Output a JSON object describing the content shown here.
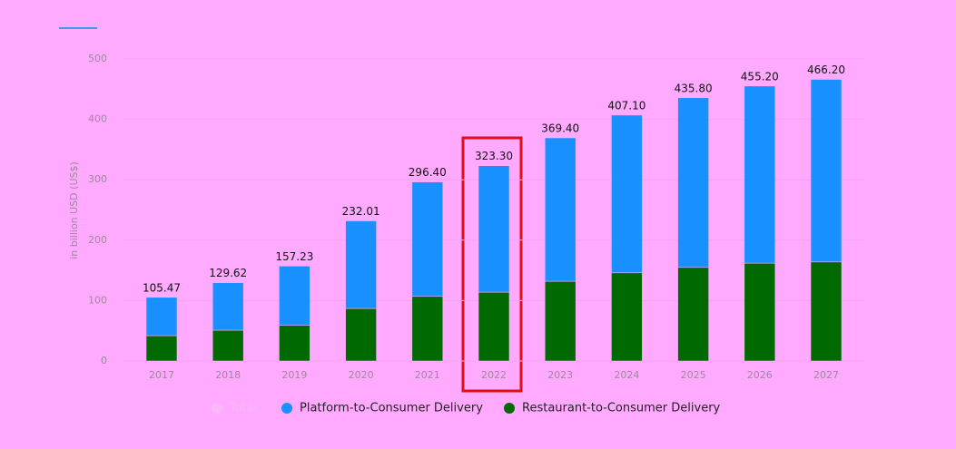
{
  "chart_data": {
    "type": "bar",
    "stacked": true,
    "y_label": "in billion USD (US$)",
    "categories": [
      "2017",
      "2018",
      "2019",
      "2020",
      "2021",
      "2022",
      "2023",
      "2024",
      "2025",
      "2026",
      "2027"
    ],
    "series": [
      {
        "name": "Total",
        "color": "#f7b8f7",
        "hidden": true,
        "values": [
          105.47,
          129.62,
          157.23,
          232.01,
          296.4,
          323.3,
          369.4,
          407.1,
          435.8,
          455.2,
          466.2
        ],
        "value_labels": [
          "105.47",
          "129.62",
          "157.23",
          "232.01",
          "296.40",
          "323.30",
          "369.40",
          "407.10",
          "435.80",
          "455.20",
          "466.20"
        ]
      },
      {
        "name": "Platform-to-Consumer Delivery",
        "color": "#1890ff",
        "values": [
          63.47,
          78.62,
          98.23,
          145.01,
          189.4,
          209.3,
          237.4,
          261.1,
          280.8,
          293.2,
          302.2
        ]
      },
      {
        "name": "Restaurant-to-Consumer Delivery",
        "color": "#006a00",
        "values": [
          42,
          51,
          59,
          87,
          107,
          114,
          132,
          146,
          155,
          162,
          164
        ]
      }
    ],
    "ylim": [
      0,
      500
    ],
    "yticks": [
      0,
      100,
      200,
      300,
      400,
      500
    ],
    "grid": true
  }
}
